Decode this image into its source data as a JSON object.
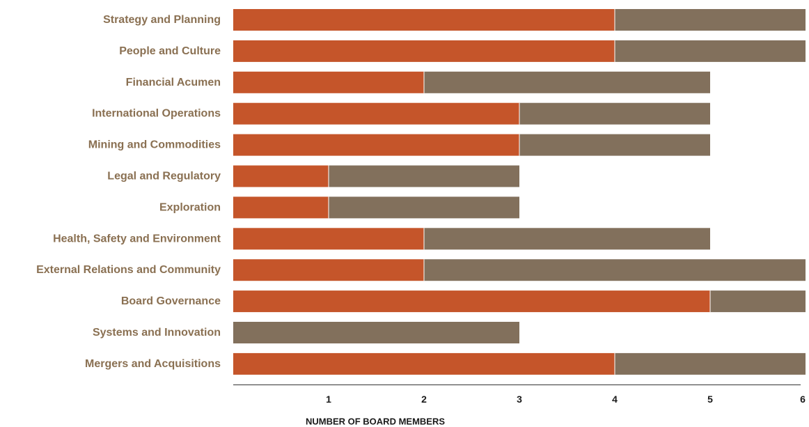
{
  "chart_data": {
    "type": "bar",
    "orientation": "horizontal",
    "stacked": true,
    "categories": [
      "Strategy and Planning",
      "People and Culture",
      "Financial Acumen",
      "International Operations",
      "Mining and Commodities",
      "Legal and Regulatory",
      "Exploration",
      "Health, Safety and Environment",
      "External Relations and Community",
      "Board Governance",
      "Systems and Innovation",
      "Mergers and Acquisitions"
    ],
    "series": [
      {
        "color": "#c5552a",
        "values": [
          4,
          4,
          2,
          3,
          3,
          1,
          1,
          2,
          2,
          5,
          0,
          4
        ]
      },
      {
        "color": "#82705c",
        "values": [
          2,
          2,
          3,
          2,
          2,
          2,
          2,
          3,
          4,
          1,
          3,
          2
        ]
      }
    ],
    "xticks": [
      "1",
      "2",
      "3",
      "4",
      "5",
      "6"
    ],
    "xlim": [
      0,
      6
    ],
    "xlabel": "NUMBER OF BOARD MEMBERS",
    "title": "",
    "grid": false,
    "legend": "none",
    "label_color": "#8a7052",
    "axis_text_color": "#1a1a1a",
    "axis_line_color": "#333333"
  }
}
